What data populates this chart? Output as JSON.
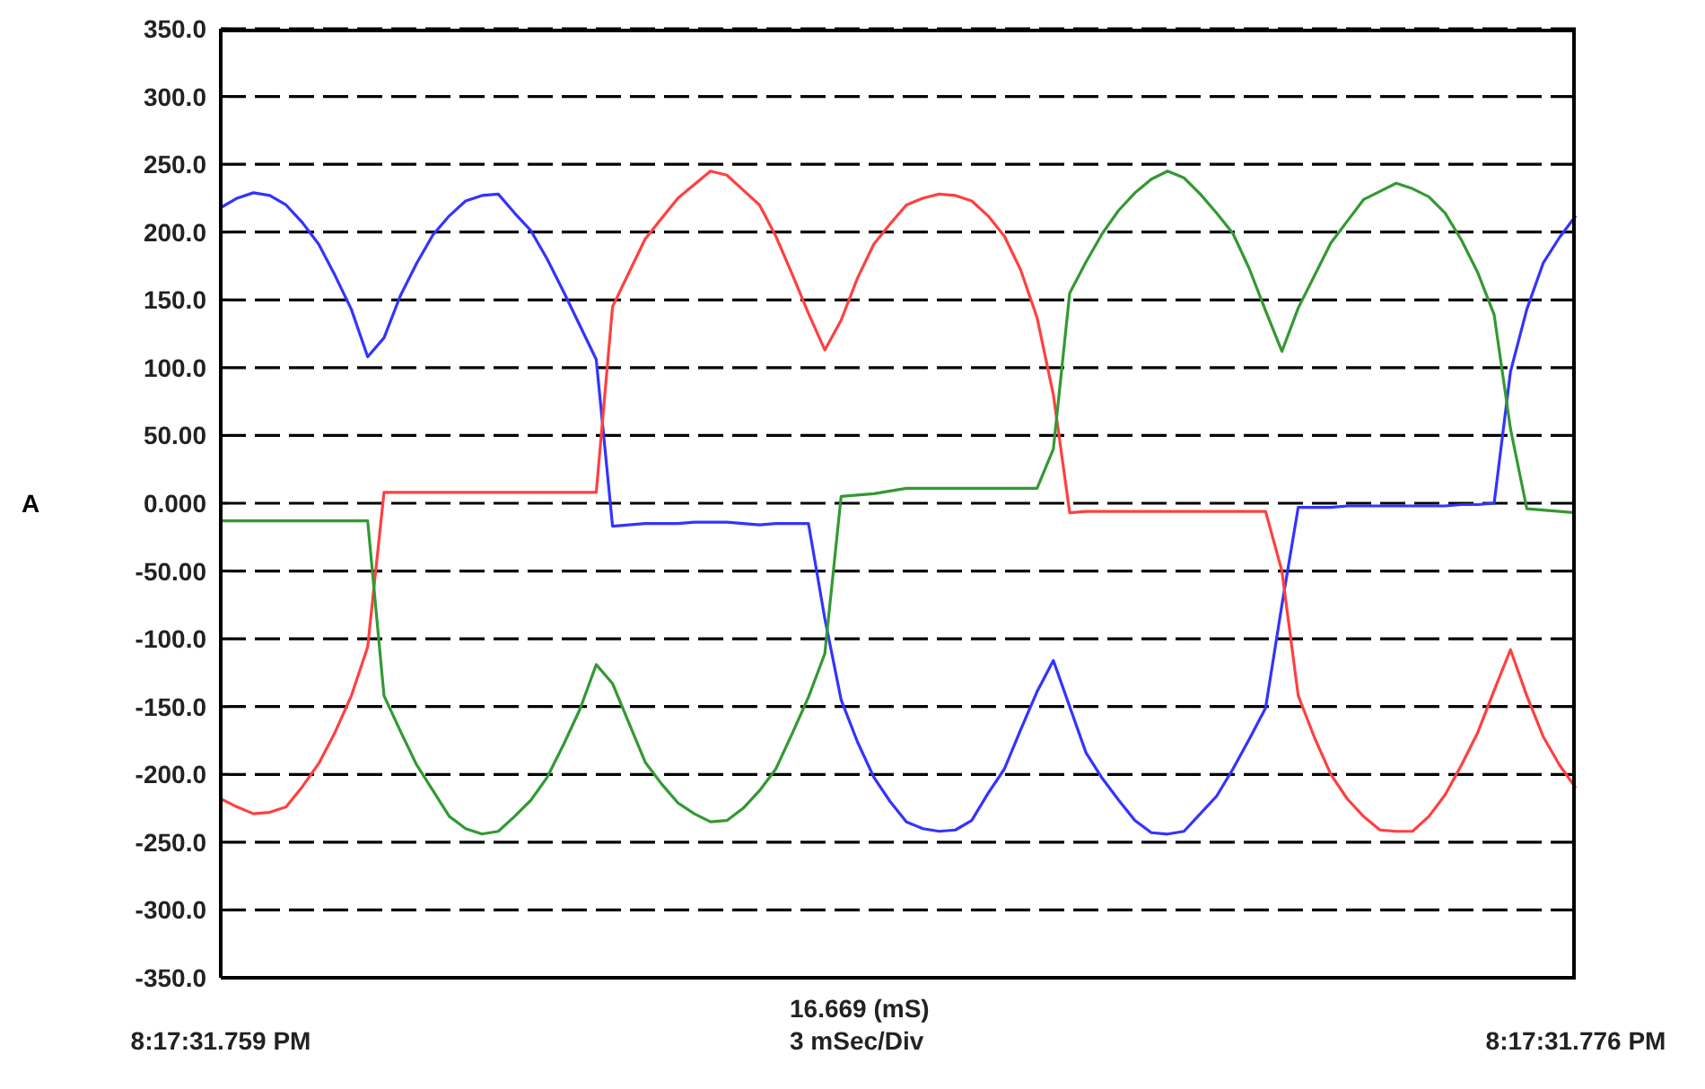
{
  "chart_data": {
    "type": "line",
    "ylabel": "A",
    "xlabel": "16.669 (mS)\n3 mSec/Div",
    "categories": [
      "8:17:31.759 PM",
      null,
      null,
      null,
      null,
      null,
      null,
      null,
      null,
      null,
      null,
      null,
      null,
      null,
      null,
      null,
      null,
      null,
      null,
      null,
      null,
      null,
      null,
      null,
      null,
      null,
      null,
      null,
      null,
      null,
      null,
      null,
      null,
      null,
      null,
      null,
      null,
      null,
      null,
      null,
      null,
      null,
      null,
      null,
      null,
      null,
      null,
      null,
      null,
      null,
      null,
      null,
      null,
      null,
      null,
      null,
      null,
      null,
      null,
      null,
      null,
      null,
      null,
      null,
      null,
      null,
      null,
      null,
      null,
      null,
      null,
      null,
      null,
      null,
      null,
      null,
      null,
      null,
      null,
      null,
      null,
      null,
      null,
      "8:17:31.776 PM"
    ],
    "ylim": [
      -350,
      350
    ],
    "yticks": [
      {
        "value": 350,
        "label": "350.0"
      },
      {
        "value": 300,
        "label": "300.0"
      },
      {
        "value": 250,
        "label": "250.0"
      },
      {
        "value": 200,
        "label": "200.0"
      },
      {
        "value": 150,
        "label": "150.0"
      },
      {
        "value": 100,
        "label": "100.0"
      },
      {
        "value": 50,
        "label": "50.00"
      },
      {
        "value": 0,
        "label": "0.000"
      },
      {
        "value": -50,
        "label": "-50.00"
      },
      {
        "value": -100,
        "label": "-100.0"
      },
      {
        "value": -150,
        "label": "-150.0"
      },
      {
        "value": -200,
        "label": "-200.0"
      },
      {
        "value": -250,
        "label": "-250.0"
      },
      {
        "value": -300,
        "label": "-300.0"
      },
      {
        "value": -350,
        "label": "-350.0"
      }
    ],
    "grid": "y",
    "line_style": "solid",
    "marker": "none",
    "series": [
      {
        "color": "#3333ff",
        "values": [
          218,
          225,
          229,
          227,
          220,
          207,
          191,
          168,
          143,
          108,
          122,
          153,
          177,
          198,
          212,
          223,
          227,
          228,
          214,
          201,
          180,
          156,
          131,
          106,
          -17,
          -16,
          -15,
          -15,
          -15,
          -14,
          -14,
          -14,
          -15,
          -16,
          -15,
          -15,
          -15,
          -85,
          -145,
          -176,
          -202,
          -220,
          -235,
          -240,
          -242,
          -241,
          -234,
          -214,
          -196,
          -167,
          -139,
          -116,
          -150,
          -184,
          -203,
          -219,
          -234,
          -243,
          -244,
          -242,
          -229,
          -216,
          -196,
          -174,
          -151,
          -75,
          -3,
          -3,
          -3,
          -2,
          -2,
          -2,
          -2,
          -2,
          -2,
          -2,
          -1,
          -1,
          0,
          97,
          143,
          177,
          196,
          212
        ]
      },
      {
        "color": "#ff4040",
        "values": [
          -218,
          -224,
          -229,
          -228,
          -224,
          -209,
          -192,
          -169,
          -142,
          -106,
          8,
          8,
          8,
          8,
          8,
          8,
          8,
          8,
          8,
          8,
          8,
          8,
          8,
          8,
          145,
          170,
          195,
          210,
          225,
          235,
          245,
          242,
          231,
          220,
          197,
          169,
          140,
          113,
          135,
          166,
          191,
          206,
          220,
          225,
          228,
          227,
          223,
          212,
          197,
          172,
          137,
          80,
          -7,
          -6,
          -6,
          -6,
          -6,
          -6,
          -6,
          -6,
          -6,
          -6,
          -6,
          -6,
          -6,
          -50,
          -142,
          -173,
          -200,
          -218,
          -231,
          -241,
          -242,
          -242,
          -231,
          -215,
          -193,
          -169,
          -138,
          -108,
          -142,
          -172,
          -193,
          -210
        ]
      },
      {
        "color": "#339933",
        "values": [
          -13,
          -13,
          -13,
          -13,
          -13,
          -13,
          -13,
          -13,
          -13,
          -13,
          -142,
          -168,
          -193,
          -212,
          -231,
          -240,
          -244,
          -242,
          -231,
          -219,
          -202,
          -178,
          -152,
          -119,
          -133,
          -162,
          -191,
          -207,
          -221,
          -229,
          -235,
          -234,
          -225,
          -212,
          -196,
          -170,
          -143,
          -111,
          5,
          6,
          7,
          9,
          11,
          11,
          11,
          11,
          11,
          11,
          11,
          11,
          11,
          40,
          155,
          178,
          199,
          216,
          229,
          239,
          245,
          240,
          228,
          214,
          199,
          173,
          142,
          112,
          144,
          168,
          192,
          208,
          224,
          230,
          236,
          232,
          226,
          214,
          194,
          170,
          139,
          55,
          -4,
          -5,
          -6,
          -7
        ]
      }
    ]
  }
}
